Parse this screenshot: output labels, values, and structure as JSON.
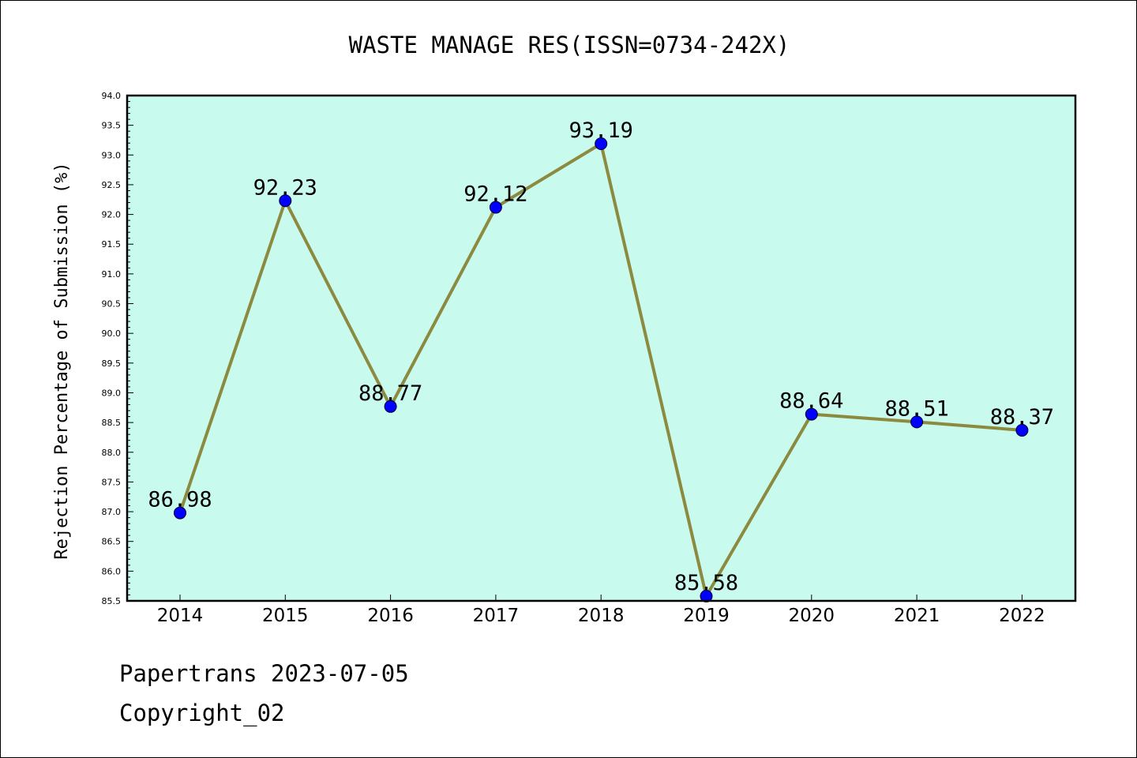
{
  "chart_data": {
    "type": "line",
    "title": "WASTE MANAGE RES(ISSN=0734-242X)",
    "xlabel": "",
    "ylabel": "Rejection Percentage of Submission (%)",
    "categories": [
      "2014",
      "2015",
      "2016",
      "2017",
      "2018",
      "2019",
      "2020",
      "2021",
      "2022"
    ],
    "series": [
      {
        "values": [
          86.98,
          92.23,
          88.77,
          92.12,
          93.19,
          85.58,
          88.64,
          88.51,
          88.37
        ]
      }
    ],
    "data_labels": [
      "86.98",
      "92.23",
      "88.77",
      "92.12",
      "93.19",
      "85.58",
      "88.64",
      "88.51",
      "88.37"
    ],
    "ylim": [
      85.5,
      94.0
    ],
    "yticks": [
      "85.5",
      "86.0",
      "86.5",
      "87.0",
      "87.5",
      "88.0",
      "88.5",
      "89.0",
      "89.5",
      "90.0",
      "90.5",
      "91.0",
      "91.5",
      "92.0",
      "92.5",
      "93.0",
      "93.5",
      "94.0"
    ],
    "grid": false,
    "legend": "none",
    "colors": {
      "plot_background": "#c8faee",
      "line": "#8b8a3e",
      "marker": "#0000ff"
    }
  },
  "footer": {
    "line1": "Papertrans 2023-07-05",
    "line2": "Copyright_02"
  }
}
